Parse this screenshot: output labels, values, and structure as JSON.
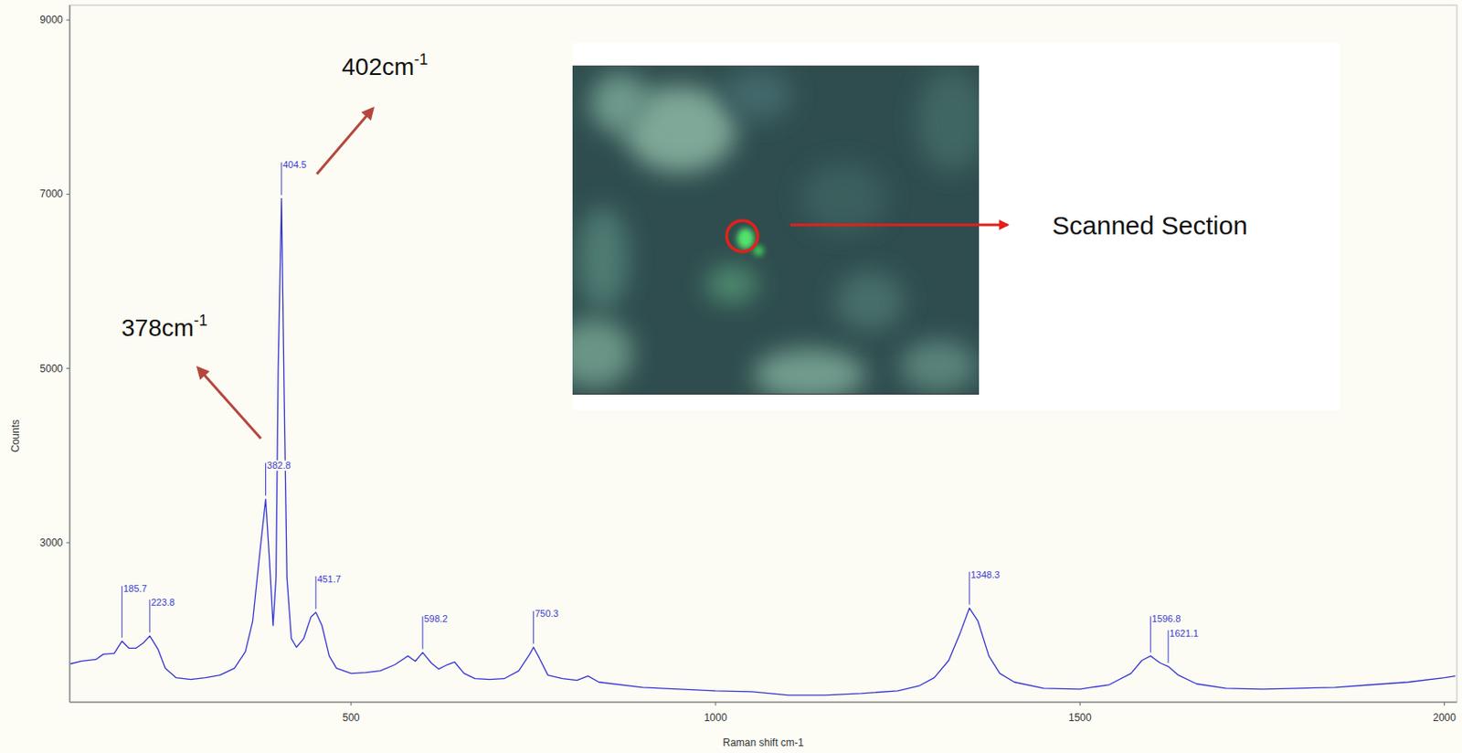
{
  "chart_data": {
    "type": "line",
    "x_label": "Raman shift cm-1",
    "y_label": "Counts",
    "color": "#3333d4",
    "grid": false,
    "xlim": [
      114,
      2017
    ],
    "ylim": [
      1170,
      9170
    ],
    "xticks": [
      500,
      1000,
      1500,
      2000
    ],
    "yticks": [
      3000,
      5000,
      7000,
      9000
    ],
    "x": [
      115,
      130,
      150,
      160,
      175,
      185.7,
      195,
      205,
      215,
      223.8,
      235,
      245,
      260,
      280,
      300,
      320,
      340,
      355,
      365,
      375,
      382.8,
      388,
      393,
      397,
      400,
      404.5,
      408,
      412,
      418,
      425,
      435,
      445,
      451.7,
      460,
      470,
      480,
      500,
      520,
      540,
      560,
      578,
      588,
      598.2,
      610,
      620,
      632,
      642,
      655,
      670,
      690,
      710,
      730,
      745,
      750.3,
      758,
      770,
      790,
      810,
      825,
      840,
      900,
      1000,
      1050,
      1100,
      1150,
      1200,
      1250,
      1280,
      1300,
      1320,
      1335,
      1348.3,
      1360,
      1375,
      1390,
      1410,
      1450,
      1500,
      1540,
      1570,
      1585,
      1596.8,
      1610,
      1621.1,
      1635,
      1660,
      1700,
      1750,
      1800,
      1850,
      1900,
      1950,
      2000,
      2015
    ],
    "values": [
      1610,
      1640,
      1660,
      1720,
      1730,
      1870,
      1790,
      1790,
      1850,
      1930,
      1780,
      1560,
      1450,
      1430,
      1450,
      1480,
      1560,
      1750,
      2100,
      2900,
      3500,
      2800,
      2050,
      2600,
      5000,
      6950,
      4800,
      2600,
      1900,
      1800,
      1900,
      2150,
      2200,
      2050,
      1700,
      1560,
      1500,
      1510,
      1530,
      1600,
      1700,
      1640,
      1740,
      1620,
      1550,
      1600,
      1630,
      1500,
      1440,
      1430,
      1440,
      1530,
      1720,
      1800,
      1680,
      1480,
      1440,
      1420,
      1470,
      1400,
      1340,
      1300,
      1290,
      1250,
      1250,
      1270,
      1300,
      1360,
      1450,
      1650,
      1950,
      2250,
      2100,
      1700,
      1500,
      1400,
      1330,
      1320,
      1370,
      1500,
      1650,
      1700,
      1620,
      1580,
      1480,
      1380,
      1330,
      1320,
      1330,
      1340,
      1370,
      1400,
      1450,
      1470
    ],
    "peak_labels": {
      "x": [
        185.7,
        223.8,
        382.8,
        404.5,
        451.7,
        598.2,
        750.3,
        1348.3,
        1596.8,
        1621.1
      ],
      "y": [
        1870,
        1930,
        3500,
        6950,
        2200,
        1740,
        1800,
        2250,
        1700,
        1580
      ]
    },
    "annotations": [
      {
        "text": "402cm",
        "sup": "-1"
      },
      {
        "text": "378cm",
        "sup": "-1"
      }
    ],
    "inset_label": "Scanned Section"
  }
}
